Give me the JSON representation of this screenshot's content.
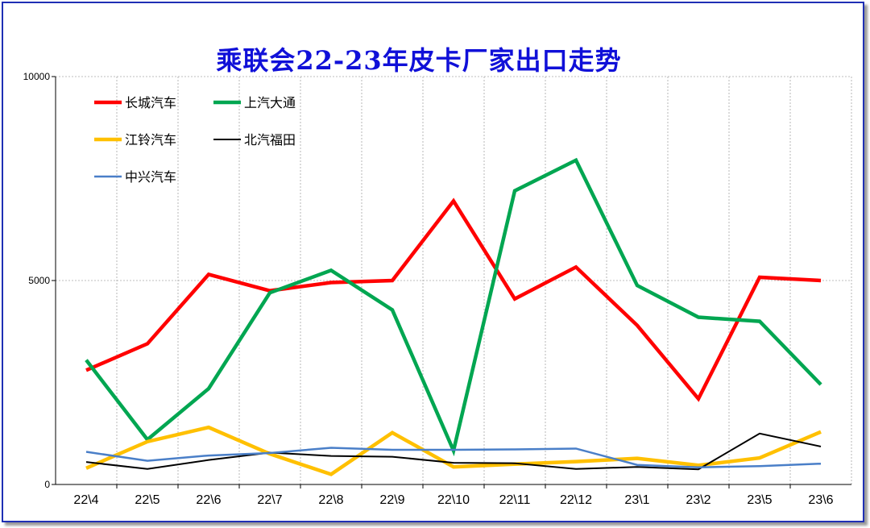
{
  "chart_data": {
    "type": "line",
    "title": "乘联会22-23年皮卡厂家出口走势",
    "xlabel": "",
    "ylabel": "",
    "categories": [
      "22\\4",
      "22\\5",
      "22\\6",
      "22\\7",
      "22\\8",
      "22\\9",
      "22\\10",
      "22\\11",
      "22\\12",
      "23\\1",
      "23\\2",
      "23\\5",
      "23\\6"
    ],
    "ylim": [
      0,
      10000
    ],
    "yticks": [
      "0",
      "5000",
      "10000"
    ],
    "grid": true,
    "legend_position": "top-left",
    "series": [
      {
        "name": "长城汽车",
        "color": "#ff0000",
        "width": 4.5,
        "values": [
          2800,
          3450,
          5150,
          4750,
          4950,
          5000,
          6950,
          4550,
          5330,
          3900,
          2100,
          5080,
          5000
        ]
      },
      {
        "name": "上汽大通",
        "color": "#00a651",
        "width": 4.5,
        "values": [
          3050,
          1100,
          2350,
          4700,
          5250,
          4280,
          830,
          7200,
          7950,
          4880,
          4100,
          4000,
          2450
        ]
      },
      {
        "name": "江铃汽车",
        "color": "#ffc000",
        "width": 4.5,
        "values": [
          400,
          1050,
          1400,
          750,
          250,
          1270,
          430,
          500,
          560,
          640,
          470,
          650,
          1290
        ]
      },
      {
        "name": "北汽福田",
        "color": "#000000",
        "width": 2,
        "values": [
          550,
          380,
          600,
          780,
          700,
          680,
          530,
          520,
          380,
          430,
          370,
          1250,
          930
        ]
      },
      {
        "name": "中兴汽车",
        "color": "#4a7fc8",
        "width": 2.5,
        "values": [
          800,
          580,
          710,
          770,
          900,
          850,
          850,
          860,
          880,
          480,
          420,
          450,
          510
        ]
      }
    ]
  }
}
